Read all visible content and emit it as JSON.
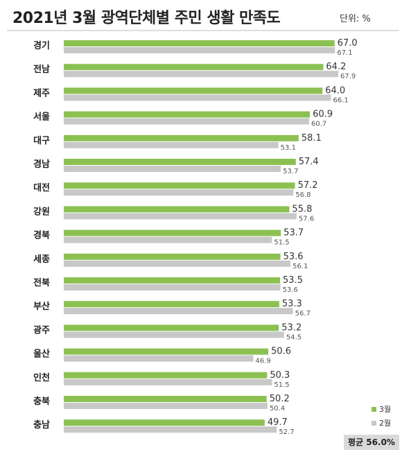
{
  "header": {
    "title": "2021년 3월 광역단체별 주민 생활 만족도",
    "unit": "단위: %"
  },
  "legend": {
    "march": "3월",
    "february": "2월"
  },
  "average": "평균 56.0%",
  "colors": {
    "march": "#8cc152",
    "february": "#c8c8c8"
  },
  "chart_data": {
    "type": "bar",
    "orientation": "horizontal",
    "title": "2021년 3월 광역단체별 주민 생활 만족도",
    "unit": "단위: %",
    "categories": [
      "경기",
      "전남",
      "제주",
      "서울",
      "대구",
      "경남",
      "대전",
      "강원",
      "경북",
      "세종",
      "전북",
      "부산",
      "광주",
      "울산",
      "인천",
      "충북",
      "충남"
    ],
    "series": [
      {
        "name": "3월",
        "values": [
          67.0,
          64.2,
          64.0,
          60.9,
          58.1,
          57.4,
          57.2,
          55.8,
          53.7,
          53.6,
          53.5,
          53.3,
          53.2,
          50.6,
          50.3,
          50.2,
          49.7
        ]
      },
      {
        "name": "2월",
        "values": [
          67.1,
          67.9,
          66.1,
          60.7,
          53.1,
          53.7,
          56.8,
          57.6,
          51.5,
          56.1,
          53.6,
          56.7,
          54.5,
          46.9,
          51.5,
          50.4,
          52.7
        ]
      }
    ],
    "legend_position": "bottom-right",
    "grid": false
  }
}
